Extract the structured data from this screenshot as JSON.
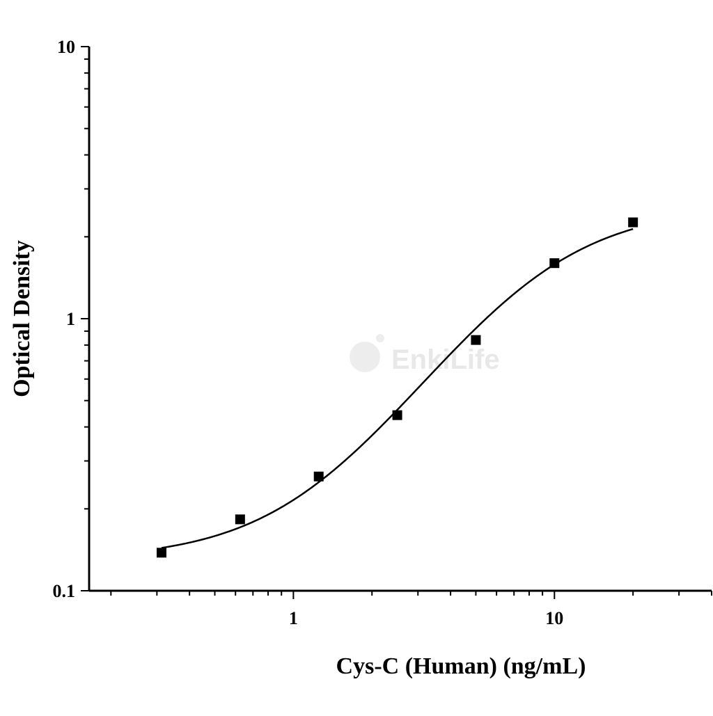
{
  "chart_data": {
    "type": "scatter",
    "xlabel": "Cys-C (Human) (ng/mL)",
    "ylabel": "Optical Density",
    "xscale": "log",
    "yscale": "log",
    "xlim": [
      0.165,
      40
    ],
    "ylim": [
      0.1,
      10
    ],
    "xticks": [
      1,
      10
    ],
    "xtick_labels": [
      "1",
      "10"
    ],
    "yticks": [
      0.1,
      1,
      10
    ],
    "ytick_labels": [
      "0.1",
      "1",
      "10"
    ],
    "grid": false,
    "legend": "none",
    "series": [
      {
        "marker": "square",
        "color": "#000000",
        "x": [
          0.3125,
          0.625,
          1.25,
          2.5,
          5,
          10,
          20
        ],
        "y": [
          0.138,
          0.183,
          0.263,
          0.442,
          0.835,
          1.6,
          2.26
        ]
      }
    ],
    "fit_curve": {
      "type": "4PL",
      "x_range": [
        0.3125,
        20
      ],
      "color": "#000000"
    }
  },
  "watermark": {
    "text": "EnkiLife"
  }
}
